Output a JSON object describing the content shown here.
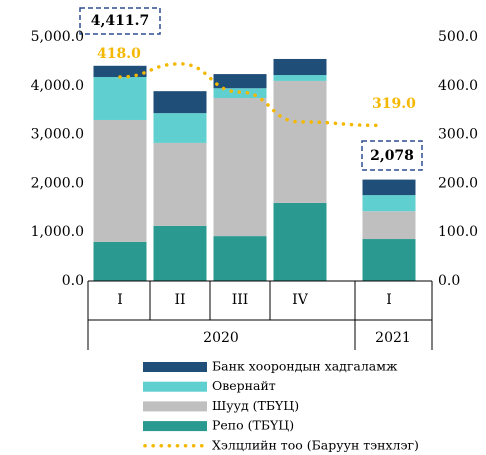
{
  "chart_data": {
    "type": "bar",
    "stacked": true,
    "categories": [
      "I",
      "II",
      "III",
      "IV",
      "I"
    ],
    "years": [
      "2020",
      "2021"
    ],
    "series": [
      {
        "name": "Репо (ТБҮЦ)",
        "color": "#2a9990",
        "values": [
          800,
          1130,
          920,
          1600,
          860
        ]
      },
      {
        "name": "Шууд (ТБҮЦ)",
        "color": "#bfbfbf",
        "values": [
          2500,
          1700,
          2830,
          2500,
          570
        ]
      },
      {
        "name": "Овернайт",
        "color": "#5fcfcf",
        "values": [
          880,
          610,
          200,
          120,
          330
        ]
      },
      {
        "name": "Банк хоорондын хадгаламж",
        "color": "#1f4e79",
        "values": [
          230,
          450,
          290,
          330,
          318
        ]
      },
      {
        "name": "Хэлцлийн тоо (Баруун тэнхлэг)",
        "color": "#f5b800",
        "type": "line",
        "axis": "y2",
        "values": [
          418,
          445,
          387,
          326,
          319
        ]
      }
    ],
    "ylim": [
      0,
      5000
    ],
    "yticks": [
      {
        "value": 0,
        "label": "0.0"
      },
      {
        "value": 1000,
        "label": "1,000.0"
      },
      {
        "value": 2000,
        "label": "2,000.0"
      },
      {
        "value": 3000,
        "label": "3,000.0"
      },
      {
        "value": 4000,
        "label": "4,000.0"
      },
      {
        "value": 5000,
        "label": "5,000.0"
      }
    ],
    "y2lim": [
      0,
      500
    ],
    "y2ticks": [
      {
        "value": 0,
        "label": "0.0"
      },
      {
        "value": 100,
        "label": "100.0"
      },
      {
        "value": 200,
        "label": "200.0"
      },
      {
        "value": 300,
        "label": "300.0"
      },
      {
        "value": 400,
        "label": "400.0"
      },
      {
        "value": 500,
        "label": "500.0"
      }
    ],
    "annotations": [
      "4,411.7",
      "418.0",
      "319.0",
      "2,078"
    ],
    "legend_order": [
      3,
      2,
      1,
      0,
      4
    ]
  }
}
